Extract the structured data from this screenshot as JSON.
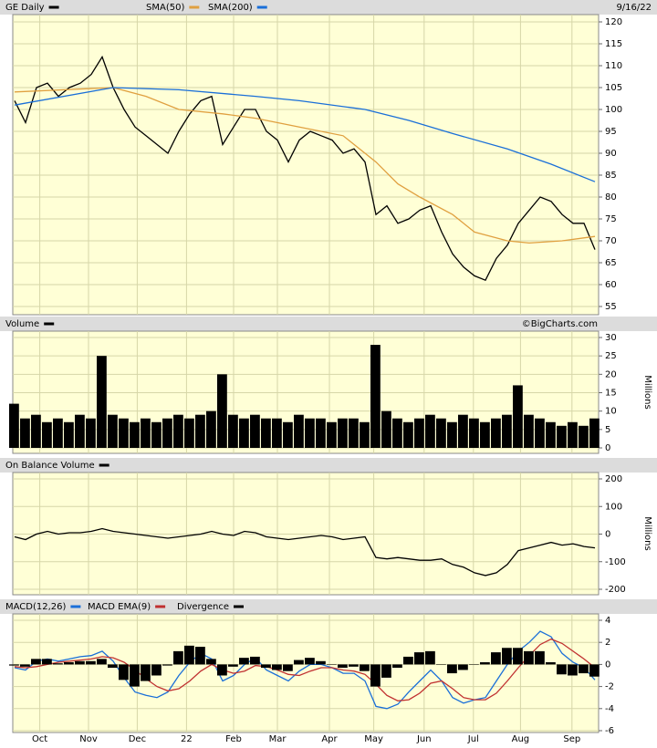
{
  "chart_data": [
    {
      "type": "line",
      "date": "9/16/22",
      "xlim": [
        0,
        53
      ],
      "ylim": [
        55,
        120
      ],
      "yticks": [
        55,
        60,
        65,
        70,
        75,
        80,
        85,
        90,
        95,
        100,
        105,
        110,
        115,
        120
      ],
      "grid": true,
      "series": [
        {
          "name": "GE Daily",
          "color": "#000000",
          "values": [
            102,
            97,
            105,
            106,
            103,
            105,
            106,
            108,
            112,
            105,
            100,
            96,
            94,
            92,
            90,
            95,
            99,
            102,
            103,
            92,
            96,
            100,
            100,
            95,
            93,
            88,
            93,
            95,
            94,
            93,
            90,
            91,
            88,
            76,
            78,
            74,
            75,
            77,
            78,
            72,
            67,
            64,
            62,
            61,
            66,
            69,
            74,
            77,
            80,
            79,
            76,
            74,
            74,
            68
          ]
        },
        {
          "name": "SMA(50)",
          "color": "#e0a040",
          "x": [
            0,
            9,
            12,
            15,
            19,
            22,
            26,
            30,
            31,
            33,
            35,
            37,
            40,
            42,
            45,
            47,
            50,
            53
          ],
          "values": [
            104,
            105,
            103,
            100,
            99,
            98,
            96,
            94,
            92,
            88,
            83,
            80,
            76,
            72,
            70,
            69.5,
            70,
            71
          ]
        },
        {
          "name": "SMA(200)",
          "color": "#1a6fd8",
          "x": [
            0,
            9,
            15,
            22,
            26,
            32,
            36,
            40,
            45,
            49,
            53
          ],
          "values": [
            101,
            105,
            104.5,
            103,
            102,
            100,
            97.5,
            94.5,
            91,
            87.5,
            83.5
          ]
        }
      ]
    },
    {
      "type": "bar",
      "credit": "©BigCharts.com",
      "ylabel": "Millions",
      "xlim": [
        0,
        53
      ],
      "ylim": [
        0,
        30
      ],
      "yticks": [
        0,
        5,
        10,
        15,
        20,
        25,
        30
      ],
      "grid": true,
      "series": [
        {
          "name": "Volume",
          "color": "#000000",
          "values": [
            12,
            8,
            9,
            7,
            8,
            7,
            9,
            8,
            25,
            9,
            8,
            7,
            8,
            7,
            8,
            9,
            8,
            9,
            10,
            20,
            9,
            8,
            9,
            8,
            8,
            7,
            9,
            8,
            8,
            7,
            8,
            8,
            7,
            28,
            10,
            8,
            7,
            8,
            9,
            8,
            7,
            9,
            8,
            7,
            8,
            9,
            17,
            9,
            8,
            7,
            6,
            7,
            6,
            8
          ]
        }
      ]
    },
    {
      "type": "line",
      "ylabel": "Millions",
      "xlim": [
        0,
        53
      ],
      "ylim": [
        -200,
        200
      ],
      "yticks": [
        -200,
        -100,
        0,
        100,
        200
      ],
      "grid": true,
      "series": [
        {
          "name": "On Balance Volume",
          "color": "#000000",
          "values": [
            -10,
            -20,
            0,
            10,
            0,
            5,
            5,
            10,
            20,
            10,
            5,
            0,
            -5,
            -10,
            -15,
            -10,
            -5,
            0,
            10,
            0,
            -5,
            10,
            5,
            -10,
            -15,
            -20,
            -15,
            -10,
            -5,
            -10,
            -20,
            -15,
            -10,
            -85,
            -90,
            -85,
            -90,
            -95,
            -95,
            -90,
            -110,
            -120,
            -140,
            -150,
            -140,
            -110,
            -60,
            -50,
            -40,
            -30,
            -40,
            -35,
            -45,
            -50
          ]
        }
      ]
    },
    {
      "type": "line",
      "xlim": [
        0,
        53
      ],
      "ylim": [
        -6,
        4
      ],
      "yticks": [
        -6,
        -4,
        -2,
        0,
        2,
        4
      ],
      "grid": true,
      "xticks": [
        {
          "value": 2.3,
          "label": "Oct"
        },
        {
          "value": 6.75,
          "label": "Nov"
        },
        {
          "value": 11.2,
          "label": "Dec"
        },
        {
          "value": 15.7,
          "label": "22"
        },
        {
          "value": 20,
          "label": "Feb"
        },
        {
          "value": 24,
          "label": "Mar"
        },
        {
          "value": 28.75,
          "label": "Apr"
        },
        {
          "value": 32.8,
          "label": "May"
        },
        {
          "value": 37.4,
          "label": "Jun"
        },
        {
          "value": 41.9,
          "label": "Jul"
        },
        {
          "value": 46.2,
          "label": "Aug"
        },
        {
          "value": 50.9,
          "label": "Sep"
        }
      ],
      "series": [
        {
          "name": "MACD(12,26)",
          "color": "#1a6fd8",
          "values": [
            -0.3,
            -0.5,
            0.3,
            0.5,
            0.3,
            0.5,
            0.7,
            0.8,
            1.2,
            0.3,
            -1.2,
            -2.5,
            -2.8,
            -3,
            -2.5,
            -1,
            0.2,
            1,
            0.5,
            -1.5,
            -1,
            0,
            0.6,
            -0.5,
            -1,
            -1.5,
            -0.6,
            0,
            0,
            -0.3,
            -0.8,
            -0.8,
            -1.5,
            -3.8,
            -4,
            -3.6,
            -2.5,
            -1.5,
            -0.5,
            -1.5,
            -3,
            -3.5,
            -3.2,
            -3,
            -1.5,
            0,
            1.2,
            2,
            3,
            2.5,
            1,
            0.2,
            -0.3,
            -1.4
          ]
        },
        {
          "name": "MACD EMA(9)",
          "color": "#c03030",
          "values": [
            -0.2,
            -0.3,
            -0.2,
            0,
            0.2,
            0.3,
            0.4,
            0.5,
            0.7,
            0.6,
            0.2,
            -0.5,
            -1.3,
            -2,
            -2.4,
            -2.2,
            -1.5,
            -0.6,
            0,
            -0.5,
            -0.8,
            -0.6,
            -0.1,
            -0.2,
            -0.5,
            -0.9,
            -1,
            -0.6,
            -0.3,
            -0.3,
            -0.5,
            -0.6,
            -0.9,
            -1.8,
            -2.8,
            -3.3,
            -3.2,
            -2.6,
            -1.7,
            -1.5,
            -2.2,
            -3,
            -3.2,
            -3.2,
            -2.6,
            -1.5,
            -0.3,
            0.8,
            1.8,
            2.3,
            1.9,
            1.2,
            0.5,
            -0.3
          ]
        },
        {
          "name": "Divergence",
          "type": "bar",
          "color": "#000000",
          "values": [
            -0.1,
            -0.2,
            0.5,
            0.5,
            0.1,
            0.2,
            0.3,
            0.3,
            0.5,
            -0.3,
            -1.4,
            -2.0,
            -1.5,
            -1.0,
            -0.1,
            1.2,
            1.7,
            1.6,
            0.5,
            -1.0,
            -0.2,
            0.6,
            0.7,
            -0.3,
            -0.5,
            -0.6,
            0.4,
            0.6,
            0.3,
            0,
            -0.3,
            -0.2,
            -0.6,
            -2.0,
            -1.2,
            -0.3,
            0.7,
            1.1,
            1.2,
            0,
            -0.8,
            -0.5,
            0,
            0.2,
            1.1,
            1.5,
            1.5,
            1.2,
            1.2,
            0.2,
            -0.9,
            -1.0,
            -0.8,
            -1.1
          ]
        }
      ]
    }
  ]
}
